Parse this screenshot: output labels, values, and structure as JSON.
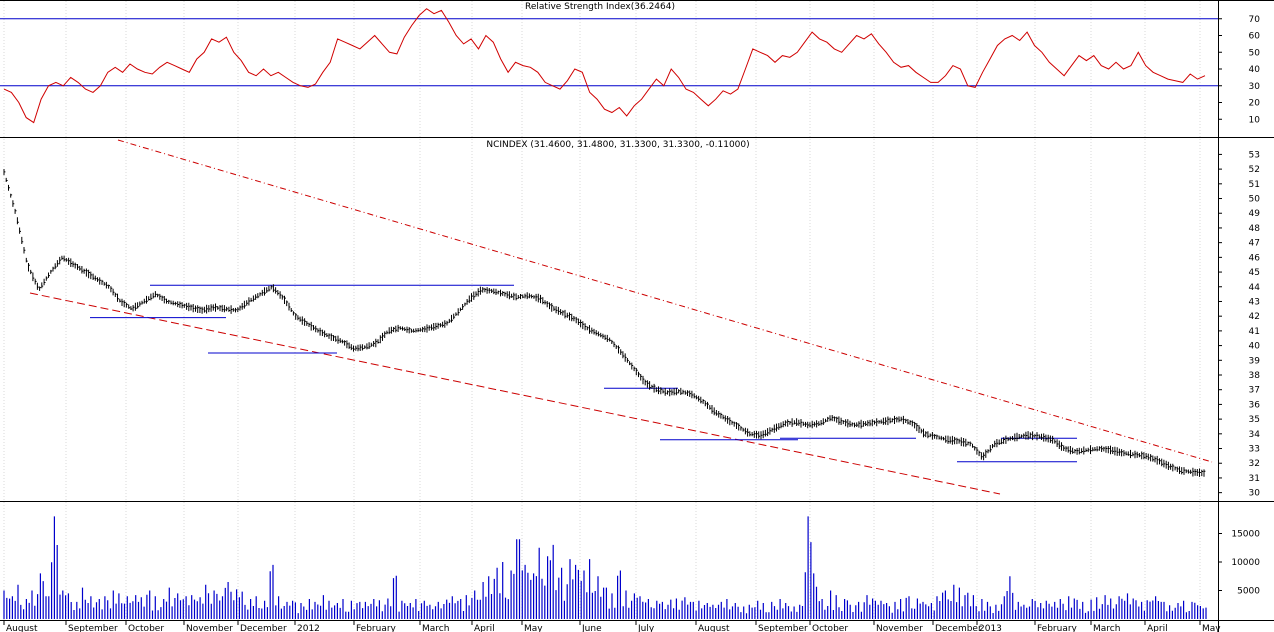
{
  "chart_data": [
    {
      "type": "line",
      "title": "Relative Strength Index(36.2464)",
      "ylim": [
        0,
        80
      ],
      "yticks": [
        10,
        20,
        30,
        40,
        50,
        60,
        70
      ],
      "reference_lines": [
        30,
        70
      ],
      "colors": {
        "line": "#d00000",
        "reference": "#0000cc"
      },
      "series": [
        {
          "values": [
            28,
            26,
            20,
            11,
            8,
            22,
            30,
            32,
            30,
            35,
            32,
            28,
            26,
            30,
            38,
            41,
            38,
            43,
            40,
            38,
            37,
            41,
            44,
            42,
            40,
            38,
            46,
            50,
            58,
            56,
            59,
            50,
            45,
            38,
            36,
            40,
            36,
            38,
            35,
            32,
            30,
            29,
            31,
            38,
            44,
            58,
            56,
            54,
            52,
            56,
            60,
            55,
            50,
            49,
            59,
            66,
            72,
            76,
            73,
            75,
            68,
            60,
            55,
            58,
            52,
            60,
            56,
            46,
            38,
            44,
            42,
            41,
            38,
            32,
            30,
            28,
            33,
            40,
            38,
            26,
            22,
            16,
            14,
            17,
            12,
            18,
            22,
            28,
            34,
            30,
            40,
            35,
            28,
            26,
            22,
            18,
            22,
            27,
            25,
            28,
            40,
            52,
            50,
            48,
            44,
            48,
            47,
            50,
            56,
            62,
            58,
            56,
            52,
            50,
            55,
            60,
            58,
            61,
            55,
            50,
            44,
            41,
            42,
            38,
            35,
            32,
            32,
            36,
            42,
            40,
            30,
            29,
            38,
            46,
            54,
            58,
            60,
            57,
            62,
            54,
            50,
            44,
            40,
            36,
            42,
            48,
            45,
            48,
            42,
            40,
            44,
            40,
            42,
            50,
            42,
            38,
            36,
            34,
            33,
            32,
            37,
            34,
            36
          ]
        }
      ]
    },
    {
      "type": "line",
      "title": "NCINDEX (31.4600, 31.4800, 31.3300, 31.3300, -0.11000)",
      "ylim": [
        29.5,
        53.3
      ],
      "yticks": [
        30,
        31,
        32,
        33,
        34,
        35,
        36,
        37,
        38,
        39,
        40,
        41,
        42,
        43,
        44,
        45,
        46,
        47,
        48,
        49,
        50,
        51,
        52,
        53
      ],
      "colors": {
        "price": "#000000",
        "trendline": "#cc0000",
        "level": "#0000cc"
      },
      "series": [
        {
          "values": [
            51.8,
            49.0,
            45.5,
            43.8,
            45.0,
            46.0,
            45.5,
            45.0,
            44.5,
            44.0,
            43.0,
            42.5,
            43.0,
            43.5,
            43.0,
            42.8,
            42.6,
            42.4,
            42.6,
            42.5,
            42.4,
            43.0,
            43.5,
            44.0,
            43.2,
            42.0,
            41.5,
            41.0,
            40.6,
            40.3,
            39.8,
            39.9,
            40.2,
            41.0,
            41.2,
            41.0,
            41.1,
            41.3,
            41.5,
            42.3,
            43.2,
            43.8,
            43.7,
            43.5,
            43.3,
            43.4,
            43.2,
            42.6,
            42.2,
            41.8,
            41.2,
            40.8,
            40.4,
            39.5,
            38.5,
            37.5,
            37.0,
            36.8,
            36.9,
            36.7,
            36.2,
            35.5,
            35.0,
            34.5,
            34.0,
            33.9,
            34.3,
            34.7,
            34.8,
            34.6,
            34.7,
            35.1,
            34.8,
            34.6,
            34.7,
            34.8,
            34.9,
            35.0,
            34.7,
            34.0,
            33.8,
            33.6,
            33.5,
            33.3,
            32.4,
            33.3,
            33.6,
            33.8,
            33.9,
            33.8,
            33.6,
            33.0,
            32.8,
            32.9,
            33.0,
            32.9,
            32.7,
            32.6,
            32.5,
            32.2,
            31.8,
            31.5,
            31.4,
            31.33
          ]
        }
      ],
      "horizontal_levels": [
        {
          "from": "2011-09",
          "to": "2011-11",
          "value": 41.9
        },
        {
          "from": "2011-10",
          "to": "2012-04",
          "value": 44.1
        },
        {
          "from": "2011-11",
          "to": "2012-01",
          "value": 39.5
        },
        {
          "from": "2012-06",
          "to": "2012-07",
          "value": 37.1
        },
        {
          "from": "2012-07",
          "to": "2012-09",
          "value": 33.6
        },
        {
          "from": "2012-09",
          "to": "2012-11",
          "value": 33.7
        },
        {
          "from": "2012-12",
          "to": "2013-02",
          "value": 32.1
        },
        {
          "from": "2013-01",
          "to": "2013-02",
          "value": 33.7
        }
      ]
    },
    {
      "type": "bar",
      "title": "",
      "ylim": [
        0,
        20000
      ],
      "yticks": [
        5000,
        10000,
        15000
      ],
      "colors": {
        "bar": "#0000cc"
      },
      "values": [
        5000,
        4000,
        6000,
        3500,
        5000,
        8000,
        4000,
        18000,
        5000,
        4500,
        3000,
        5500,
        4000,
        3500,
        4000,
        5000,
        4500,
        4000,
        4200,
        3800,
        5000,
        4000,
        3500,
        5500,
        4500,
        4000,
        4200,
        3800,
        6000,
        5000,
        4000,
        6500,
        5200,
        4800,
        3500,
        4000,
        3200,
        9500,
        4000,
        3000,
        3200,
        2800,
        3500,
        3000,
        4200,
        3200,
        2800,
        3500,
        3200,
        3000,
        3000,
        3500,
        3300,
        3600,
        7600,
        3200,
        2800,
        3500,
        3200,
        2500,
        3000,
        3400,
        4000,
        3500,
        4200,
        5000,
        6500,
        7500,
        9000,
        10000,
        8500,
        14000,
        9500,
        8000,
        12500,
        11000,
        13000,
        9000,
        10500,
        9500,
        8500,
        10500,
        7500,
        5500,
        4500,
        8500,
        5000,
        4500,
        4000,
        3500,
        3200,
        3000,
        3400,
        3600,
        3800,
        3000,
        3200,
        2800,
        2500,
        3000,
        3500,
        2800,
        2200,
        2500,
        3200,
        2800,
        3000,
        3500,
        2800,
        2200,
        2500,
        18000,
        8000,
        3500,
        5000,
        4200,
        3500,
        2500,
        3000,
        4200,
        3600,
        3200,
        2800,
        3000,
        3500,
        4000,
        3600,
        3000,
        2800,
        4000,
        5000,
        6000,
        5500,
        4600,
        4200,
        3500,
        3000,
        2500,
        4000,
        7500,
        3000,
        2500,
        3500,
        2800,
        3200,
        3000,
        3500,
        4000,
        3600,
        3000,
        3400,
        3800,
        4200,
        3600,
        4000,
        4500,
        3600,
        3000,
        3300,
        4000,
        3000,
        2400,
        2800,
        3200,
        3000,
        2400,
        2000
      ]
    }
  ],
  "x_axis": {
    "labels": [
      "August",
      "September",
      "October",
      "November",
      "December",
      "2012",
      "February",
      "March",
      "April",
      "May",
      "June",
      "July",
      "August",
      "September",
      "October",
      "November",
      "December",
      "2013",
      "February",
      "March",
      "April",
      "May"
    ]
  }
}
